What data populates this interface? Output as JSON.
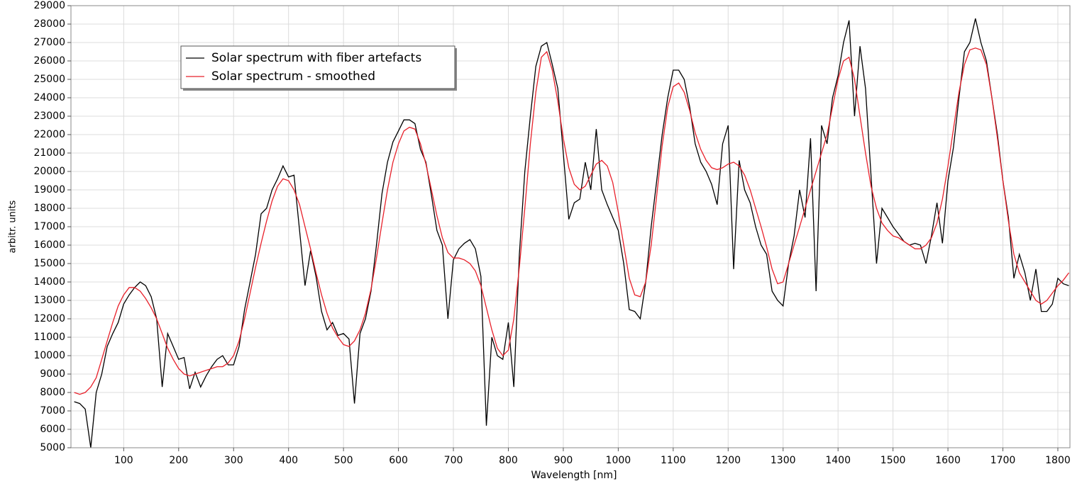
{
  "chart_data": {
    "type": "line",
    "x_label": "Wavelength [nm]",
    "y_label": "arbitr. units",
    "x": [
      10,
      20,
      30,
      40,
      50,
      60,
      70,
      80,
      90,
      100,
      110,
      120,
      130,
      140,
      150,
      160,
      170,
      180,
      190,
      200,
      210,
      220,
      230,
      240,
      250,
      260,
      270,
      280,
      290,
      300,
      310,
      320,
      330,
      340,
      350,
      360,
      370,
      380,
      390,
      400,
      410,
      420,
      430,
      440,
      450,
      460,
      470,
      480,
      490,
      500,
      510,
      520,
      530,
      540,
      550,
      560,
      570,
      580,
      590,
      600,
      610,
      620,
      630,
      640,
      650,
      660,
      670,
      680,
      690,
      700,
      710,
      720,
      730,
      740,
      750,
      760,
      770,
      780,
      790,
      800,
      810,
      820,
      830,
      840,
      850,
      860,
      870,
      880,
      890,
      900,
      910,
      920,
      930,
      940,
      950,
      960,
      970,
      980,
      990,
      1000,
      1010,
      1020,
      1030,
      1040,
      1050,
      1060,
      1070,
      1080,
      1090,
      1100,
      1110,
      1120,
      1130,
      1140,
      1150,
      1160,
      1170,
      1180,
      1190,
      1200,
      1210,
      1220,
      1230,
      1240,
      1250,
      1260,
      1270,
      1280,
      1290,
      1300,
      1310,
      1320,
      1330,
      1340,
      1350,
      1360,
      1370,
      1380,
      1390,
      1400,
      1410,
      1420,
      1430,
      1440,
      1450,
      1460,
      1470,
      1480,
      1490,
      1500,
      1510,
      1520,
      1530,
      1540,
      1550,
      1560,
      1570,
      1580,
      1590,
      1600,
      1610,
      1620,
      1630,
      1640,
      1650,
      1660,
      1670,
      1680,
      1690,
      1700,
      1710,
      1720,
      1730,
      1740,
      1750,
      1760,
      1770,
      1780,
      1790,
      1800,
      1810,
      1820
    ],
    "series": [
      {
        "name": "Solar spectrum with fiber artefacts",
        "color": "#000000",
        "values": [
          7500,
          7400,
          7100,
          5000,
          8000,
          9000,
          10500,
          11200,
          11800,
          12800,
          13300,
          13700,
          14000,
          13800,
          13200,
          12000,
          8300,
          11200,
          10500,
          9800,
          9900,
          8200,
          9100,
          8300,
          8900,
          9400,
          9800,
          10000,
          9500,
          9500,
          10500,
          12500,
          14000,
          15500,
          17700,
          18000,
          19000,
          19600,
          20300,
          19700,
          19800,
          16800,
          13800,
          15700,
          14300,
          12400,
          11400,
          11800,
          11100,
          11200,
          10900,
          7400,
          11200,
          12000,
          13500,
          16000,
          18800,
          20500,
          21600,
          22200,
          22800,
          22800,
          22600,
          21200,
          20500,
          18700,
          16800,
          16000,
          12000,
          15200,
          15800,
          16100,
          16300,
          15800,
          14300,
          6200,
          11000,
          10000,
          9800,
          11800,
          8300,
          15500,
          20000,
          23000,
          25700,
          26800,
          27000,
          25800,
          24500,
          21000,
          17400,
          18300,
          18500,
          20500,
          19000,
          22300,
          19000,
          18200,
          17500,
          16800,
          15000,
          12500,
          12400,
          12000,
          14000,
          17000,
          19500,
          22000,
          24000,
          25500,
          25500,
          25000,
          23500,
          21500,
          20500,
          20000,
          19300,
          18200,
          21500,
          22500,
          14700,
          20600,
          19000,
          18300,
          17000,
          16000,
          15500,
          13500,
          13000,
          12700,
          15000,
          16500,
          19000,
          17500,
          21800,
          13500,
          22500,
          21500,
          24000,
          25200,
          27000,
          28200,
          23000,
          26800,
          24500,
          19800,
          15000,
          18000,
          17500,
          17000,
          16600,
          16200,
          16000,
          16100,
          16000,
          15000,
          16500,
          18300,
          16100,
          19500,
          21300,
          24000,
          26500,
          27000,
          28300,
          27000,
          26000,
          24000,
          22000,
          19500,
          17500,
          14200,
          15500,
          14500,
          13000,
          14700,
          12400,
          12400,
          12800,
          14200,
          13900,
          13800
        ]
      },
      {
        "name": "Solar spectrum - smoothed",
        "color": "#e8202a",
        "values": [
          8000,
          7900,
          8000,
          8300,
          8800,
          9800,
          10800,
          11800,
          12700,
          13300,
          13700,
          13700,
          13500,
          13100,
          12600,
          12000,
          11200,
          10400,
          9800,
          9300,
          9000,
          8900,
          9000,
          9100,
          9200,
          9300,
          9400,
          9400,
          9600,
          10000,
          10800,
          12000,
          13400,
          14800,
          16100,
          17300,
          18400,
          19200,
          19600,
          19500,
          19000,
          18200,
          17000,
          15800,
          14500,
          13300,
          12300,
          11500,
          11000,
          10600,
          10500,
          10800,
          11400,
          12300,
          13600,
          15300,
          17200,
          19000,
          20500,
          21500,
          22200,
          22400,
          22300,
          21500,
          20400,
          19000,
          17600,
          16400,
          15600,
          15300,
          15300,
          15200,
          15000,
          14600,
          13800,
          12600,
          11400,
          10400,
          10000,
          10300,
          12000,
          14800,
          18000,
          21500,
          24300,
          26200,
          26500,
          25500,
          23800,
          21800,
          20200,
          19300,
          19000,
          19200,
          19800,
          20400,
          20600,
          20300,
          19400,
          17800,
          16000,
          14200,
          13300,
          13200,
          14000,
          16000,
          18700,
          21400,
          23500,
          24600,
          24800,
          24300,
          23300,
          22100,
          21200,
          20600,
          20200,
          20100,
          20200,
          20400,
          20500,
          20300,
          19800,
          19000,
          18000,
          17000,
          15900,
          14700,
          13900,
          14000,
          15000,
          16000,
          17000,
          18000,
          19000,
          20000,
          21000,
          22000,
          23500,
          25000,
          26000,
          26200,
          25000,
          23000,
          21000,
          19200,
          18000,
          17200,
          16800,
          16500,
          16400,
          16200,
          16000,
          15800,
          15800,
          16000,
          16400,
          17200,
          18500,
          20300,
          22300,
          24300,
          25800,
          26600,
          26700,
          26600,
          25800,
          24000,
          21800,
          19500,
          17300,
          15500,
          14500,
          14000,
          13500,
          13000,
          12800,
          13000,
          13400,
          13800,
          14100,
          14500
        ]
      }
    ],
    "xlim": [
      4,
      1822
    ],
    "xticks": [
      100,
      200,
      300,
      400,
      500,
      600,
      700,
      800,
      900,
      1000,
      1100,
      1200,
      1300,
      1400,
      1500,
      1600,
      1700,
      1800
    ],
    "ylim": [
      5000,
      29000
    ],
    "yticks": [
      5000,
      6000,
      7000,
      8000,
      9000,
      10000,
      11000,
      12000,
      13000,
      14000,
      15000,
      16000,
      17000,
      18000,
      19000,
      20000,
      21000,
      22000,
      23000,
      24000,
      25000,
      26000,
      27000,
      28000,
      29000
    ],
    "grid": true,
    "legend": "upper left"
  }
}
